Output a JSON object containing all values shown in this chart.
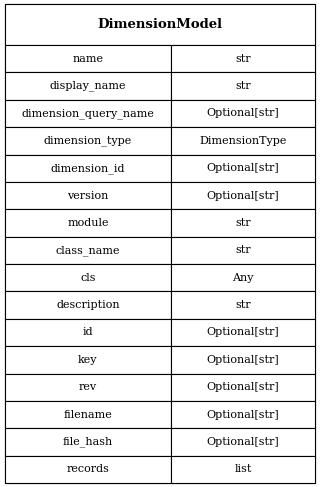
{
  "title": "DimensionModel",
  "rows": [
    [
      "name",
      "str"
    ],
    [
      "display_name",
      "str"
    ],
    [
      "dimension_query_name",
      "Optional[str]"
    ],
    [
      "dimension_type",
      "DimensionType"
    ],
    [
      "dimension_id",
      "Optional[str]"
    ],
    [
      "version",
      "Optional[str]"
    ],
    [
      "module",
      "str"
    ],
    [
      "class_name",
      "str"
    ],
    [
      "cls",
      "Any"
    ],
    [
      "description",
      "str"
    ],
    [
      "id",
      "Optional[str]"
    ],
    [
      "key",
      "Optional[str]"
    ],
    [
      "rev",
      "Optional[str]"
    ],
    [
      "filename",
      "Optional[str]"
    ],
    [
      "file_hash",
      "Optional[str]"
    ],
    [
      "records",
      "list"
    ]
  ],
  "font_name": "DejaVu Serif",
  "title_fontsize": 9.5,
  "cell_fontsize": 8.0,
  "bg_color": "#ffffff",
  "border_color": "#000000",
  "col_split": 0.535,
  "fig_width": 3.2,
  "fig_height": 4.87,
  "dpi": 100,
  "lw": 0.8
}
